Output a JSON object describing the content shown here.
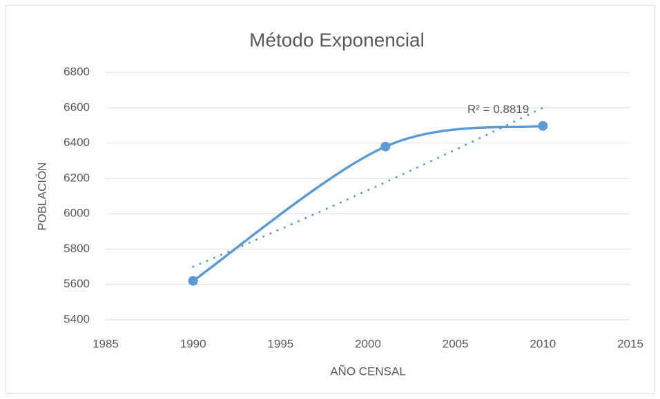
{
  "chart_data": {
    "type": "scatter",
    "title": "Método Exponencial",
    "x_label": "AÑO CENSAL",
    "y_label": "POBLACIÓN",
    "series": [
      {
        "color": "#5b9bd5",
        "x": [
          1990,
          2001,
          2010
        ],
        "values": [
          5620,
          6380,
          6497
        ]
      }
    ],
    "smooth": true,
    "trendline": {
      "type": "exponential",
      "x": [
        1990,
        2010
      ],
      "values": [
        5700,
        6600
      ],
      "label": "R² = 0.8819",
      "color": "#5b9bd5"
    },
    "xlim": [
      1985,
      2015
    ],
    "xticks": [
      1985,
      1990,
      1995,
      2000,
      2005,
      2010,
      2015
    ],
    "ylim": [
      5400,
      6800
    ],
    "yticks": [
      5400,
      5600,
      5800,
      6000,
      6200,
      6400,
      6600,
      6800
    ],
    "grid": true
  }
}
